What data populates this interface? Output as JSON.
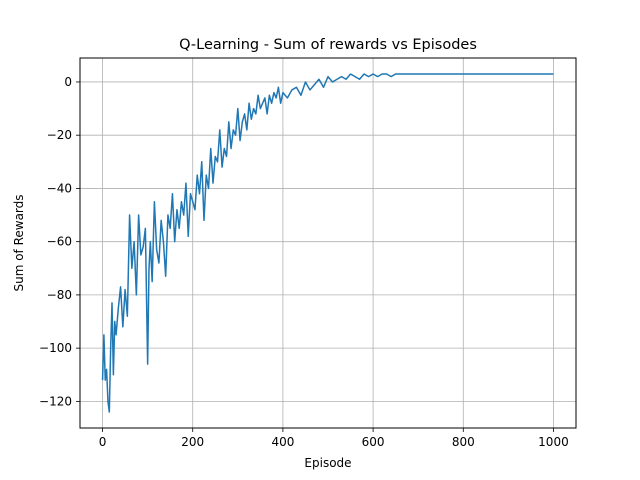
{
  "chart_data": {
    "type": "line",
    "title": "Q-Learning - Sum of rewards vs Episodes",
    "xlabel": "Episode",
    "ylabel": "Sum of Rewards",
    "xlim": [
      -50,
      1050
    ],
    "ylim": [
      -130,
      9
    ],
    "xticks": [
      0,
      200,
      400,
      600,
      800,
      1000
    ],
    "yticks": [
      -120,
      -100,
      -80,
      -60,
      -40,
      -20,
      0
    ],
    "grid": true,
    "series": [
      {
        "color": "#1f77b4",
        "x": [
          0,
          3,
          6,
          9,
          12,
          15,
          18,
          21,
          24,
          27,
          30,
          35,
          40,
          45,
          50,
          55,
          60,
          65,
          70,
          75,
          80,
          85,
          90,
          95,
          100,
          103,
          106,
          110,
          115,
          120,
          125,
          130,
          135,
          140,
          145,
          150,
          155,
          160,
          165,
          170,
          175,
          180,
          185,
          190,
          195,
          200,
          205,
          210,
          215,
          220,
          225,
          230,
          235,
          240,
          245,
          250,
          255,
          260,
          265,
          270,
          275,
          280,
          285,
          290,
          295,
          300,
          305,
          310,
          315,
          320,
          325,
          330,
          335,
          340,
          345,
          350,
          355,
          360,
          365,
          370,
          375,
          380,
          385,
          390,
          395,
          400,
          410,
          420,
          430,
          440,
          450,
          460,
          470,
          480,
          490,
          500,
          510,
          520,
          530,
          540,
          550,
          560,
          570,
          580,
          590,
          600,
          610,
          620,
          630,
          640,
          650,
          660,
          670,
          680,
          700,
          750,
          800,
          850,
          900,
          950,
          1000
        ],
        "y": [
          -112,
          -95,
          -112,
          -108,
          -120,
          -124,
          -100,
          -83,
          -110,
          -90,
          -95,
          -85,
          -77,
          -92,
          -78,
          -88,
          -50,
          -70,
          -60,
          -80,
          -50,
          -65,
          -62,
          -55,
          -106,
          -70,
          -60,
          -75,
          -45,
          -63,
          -68,
          -52,
          -60,
          -73,
          -50,
          -55,
          -42,
          -60,
          -48,
          -55,
          -45,
          -50,
          -38,
          -58,
          -42,
          -45,
          -48,
          -35,
          -42,
          -30,
          -52,
          -35,
          -40,
          -25,
          -38,
          -28,
          -30,
          -18,
          -32,
          -25,
          -28,
          -15,
          -25,
          -18,
          -20,
          -10,
          -22,
          -15,
          -12,
          -18,
          -8,
          -14,
          -10,
          -12,
          -5,
          -10,
          -8,
          -6,
          -12,
          -5,
          -8,
          -4,
          -6,
          -2,
          -8,
          -4,
          -6,
          -3,
          -2,
          -5,
          0,
          -3,
          -1,
          1,
          -2,
          2,
          0,
          1,
          2,
          1,
          3,
          2,
          1,
          3,
          2,
          3,
          2,
          3,
          3,
          2,
          3,
          3,
          3,
          3,
          3,
          3,
          3,
          3,
          3,
          3,
          3
        ]
      }
    ]
  }
}
